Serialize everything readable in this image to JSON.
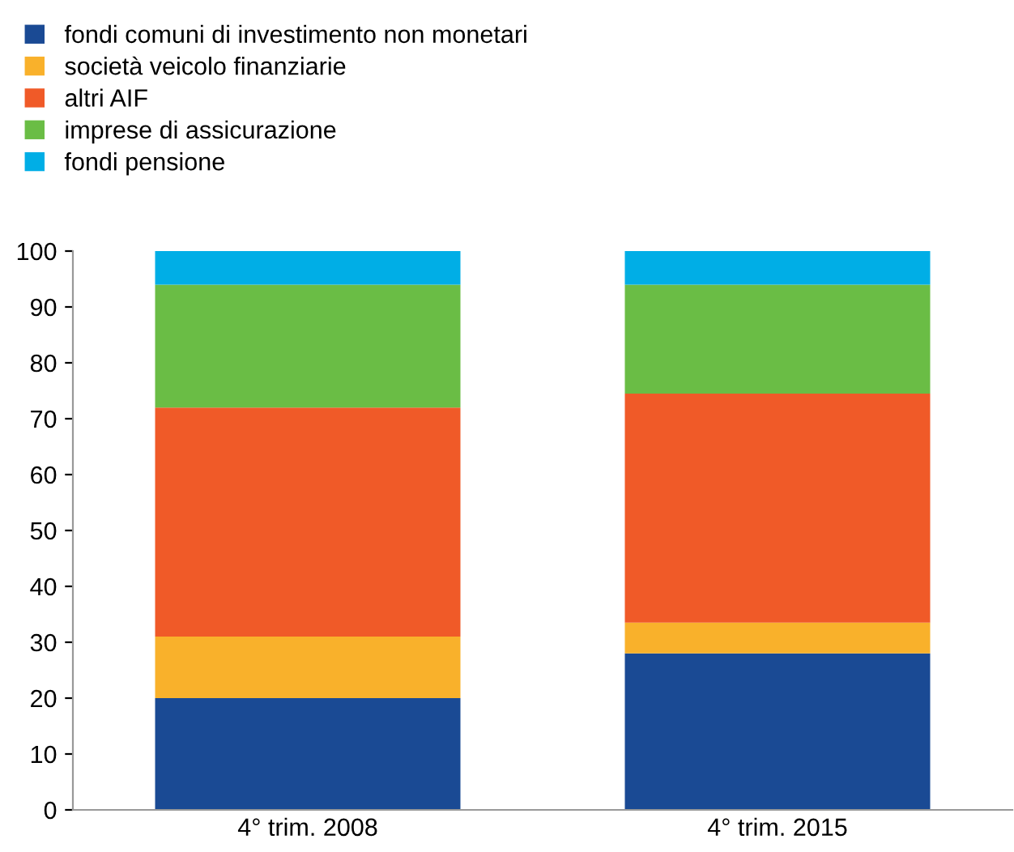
{
  "chart_data": {
    "type": "bar",
    "stacked": true,
    "categories": [
      "4° trim. 2008",
      "4° trim. 2015"
    ],
    "series": [
      {
        "name": "fondi comuni di investimento non monetari",
        "color": "#1a4a94",
        "values": [
          20,
          28
        ]
      },
      {
        "name": "società veicolo finanziarie",
        "color": "#f9b12b",
        "values": [
          11,
          5.5
        ]
      },
      {
        "name": "altri AIF",
        "color": "#f05a28",
        "values": [
          41,
          41
        ]
      },
      {
        "name": "imprese di assicurazione",
        "color": "#6abd45",
        "values": [
          22,
          19.5
        ]
      },
      {
        "name": "fondi pensione",
        "color": "#00aee6",
        "values": [
          6,
          6
        ]
      }
    ],
    "ylim": [
      0,
      100
    ],
    "yticks": [
      0,
      10,
      20,
      30,
      40,
      50,
      60,
      70,
      80,
      90,
      100
    ],
    "grid": false,
    "legend": "top left"
  }
}
